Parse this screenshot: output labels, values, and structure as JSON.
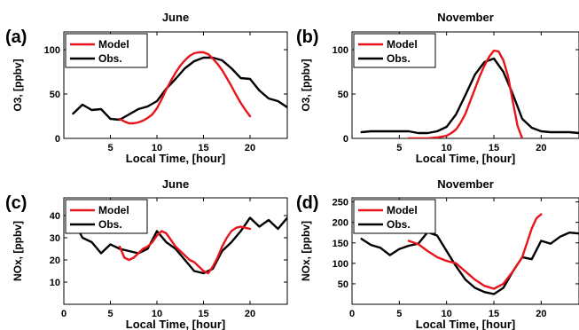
{
  "chart_data": [
    {
      "type": "line",
      "panel_label": "(a)",
      "title": "June",
      "xlabel": "Local Time, [hour]",
      "ylabel": "O3, [ppbv]",
      "xlim": [
        0,
        24
      ],
      "ylim": [
        0,
        120
      ],
      "xticks": [
        5,
        10,
        15,
        20
      ],
      "yticks": [
        0,
        50,
        100
      ],
      "legend": "top-left",
      "series": [
        {
          "name": "Model",
          "color": "#e8141b",
          "x": [
            6,
            6.5,
            7,
            7.5,
            8,
            8.5,
            9,
            9.5,
            10,
            10.5,
            11,
            11.5,
            12,
            12.5,
            13,
            13.5,
            14,
            14.5,
            15,
            15.5,
            16,
            16.5,
            17,
            17.5,
            18,
            18.5,
            19,
            19.5,
            20
          ],
          "y": [
            22,
            19,
            17,
            17,
            18,
            20,
            23,
            27,
            34,
            44,
            55,
            65,
            74,
            82,
            88,
            93,
            96,
            97,
            97,
            95,
            90,
            84,
            77,
            68,
            59,
            49,
            40,
            32,
            25
          ]
        },
        {
          "name": "Obs.",
          "color": "#000000",
          "x": [
            1,
            2,
            3,
            4,
            5,
            6,
            7,
            8,
            9,
            10,
            11,
            12,
            13,
            14,
            15,
            16,
            17,
            18,
            19,
            20,
            21,
            22,
            23,
            24
          ],
          "y": [
            28,
            38,
            32,
            33,
            22,
            21,
            27,
            33,
            36,
            42,
            56,
            67,
            79,
            87,
            91,
            91,
            88,
            79,
            68,
            67,
            54,
            45,
            42,
            35
          ]
        }
      ]
    },
    {
      "type": "line",
      "panel_label": "(b)",
      "title": "November",
      "xlabel": "Local Time, [hour]",
      "ylabel": "O3, [ppbv]",
      "xlim": [
        0,
        24
      ],
      "ylim": [
        0,
        120
      ],
      "xticks": [
        5,
        10,
        15,
        20
      ],
      "yticks": [
        0,
        50,
        100
      ],
      "legend": "top-left",
      "series": [
        {
          "name": "Model",
          "color": "#e8141b",
          "x": [
            6,
            7,
            8,
            9,
            10,
            10.5,
            11,
            11.5,
            12,
            12.5,
            13,
            13.5,
            14,
            14.5,
            15,
            15.5,
            16,
            16.5,
            17,
            17.5,
            18
          ],
          "y": [
            0,
            0,
            0,
            1,
            3,
            6,
            10,
            18,
            28,
            42,
            56,
            70,
            82,
            92,
            99,
            98,
            88,
            70,
            42,
            14,
            0
          ]
        },
        {
          "name": "Obs.",
          "color": "#000000",
          "x": [
            1,
            2,
            3,
            4,
            5,
            6,
            7,
            8,
            9,
            10,
            11,
            12,
            13,
            14,
            15,
            16,
            17,
            18,
            19,
            20,
            21,
            22,
            23,
            24
          ],
          "y": [
            7,
            8,
            8,
            8,
            8,
            8,
            6,
            6,
            8,
            13,
            27,
            49,
            72,
            86,
            90,
            75,
            50,
            22,
            12,
            8,
            7,
            7,
            7,
            6
          ]
        }
      ]
    },
    {
      "type": "line",
      "panel_label": "(c)",
      "title": "June",
      "xlabel": "Local Time, [hour]",
      "ylabel": "NOx, [ppbv]",
      "xlim": [
        0,
        24
      ],
      "ylim": [
        0,
        48
      ],
      "xticks": [
        0,
        5,
        10,
        15,
        20
      ],
      "yticks": [
        10,
        20,
        30,
        40
      ],
      "legend": "top-left",
      "series": [
        {
          "name": "Model",
          "color": "#e8141b",
          "x": [
            6,
            6.5,
            7,
            7.5,
            8,
            8.5,
            9,
            9.5,
            10,
            10.5,
            11,
            11.5,
            12,
            12.5,
            13,
            13.5,
            14,
            14.5,
            15,
            15.5,
            16,
            16.5,
            17,
            17.5,
            18,
            18.5,
            19,
            19.5,
            20
          ],
          "y": [
            26,
            21,
            20,
            21,
            23,
            25,
            26,
            28,
            31,
            33,
            32,
            29,
            26,
            24,
            22,
            20,
            19,
            17,
            15,
            14,
            17,
            21,
            26,
            30,
            33,
            34.5,
            35,
            34.5,
            34
          ]
        },
        {
          "name": "Obs.",
          "color": "#000000",
          "x": [
            1,
            2,
            3,
            4,
            5,
            6,
            7,
            8,
            9,
            10,
            11,
            12,
            13,
            14,
            15,
            16,
            17,
            18,
            19,
            20,
            21,
            22,
            23,
            24
          ],
          "y": [
            38,
            30,
            28,
            23,
            27,
            25,
            24,
            23,
            25,
            33,
            28,
            25,
            20,
            15,
            14,
            16,
            24,
            28,
            33,
            39,
            35,
            38,
            34,
            39
          ]
        }
      ]
    },
    {
      "type": "line",
      "panel_label": "(d)",
      "title": "November",
      "xlabel": "Local Time, [hour]",
      "ylabel": "NOx, [ppbv]",
      "xlim": [
        0,
        24
      ],
      "ylim": [
        0,
        260
      ],
      "xticks": [
        0,
        5,
        10,
        15,
        20
      ],
      "yticks": [
        50,
        100,
        150,
        200,
        250
      ],
      "legend": "top-left",
      "series": [
        {
          "name": "Model",
          "color": "#e8141b",
          "x": [
            6,
            7,
            8,
            9,
            10,
            11,
            12,
            13,
            14,
            15,
            16,
            17,
            18,
            19,
            19.5,
            20
          ],
          "y": [
            155,
            147,
            130,
            115,
            106,
            100,
            80,
            60,
            45,
            38,
            50,
            80,
            115,
            185,
            210,
            220
          ]
        },
        {
          "name": "Obs.",
          "color": "#000000",
          "x": [
            1,
            2,
            3,
            4,
            5,
            6,
            7,
            8,
            9,
            10,
            11,
            12,
            13,
            14,
            15,
            16,
            17,
            18,
            19,
            20,
            21,
            22,
            23,
            24
          ],
          "y": [
            160,
            145,
            138,
            120,
            135,
            143,
            148,
            176,
            168,
            130,
            93,
            60,
            40,
            30,
            25,
            40,
            80,
            115,
            110,
            155,
            148,
            165,
            175,
            173
          ]
        }
      ]
    }
  ]
}
